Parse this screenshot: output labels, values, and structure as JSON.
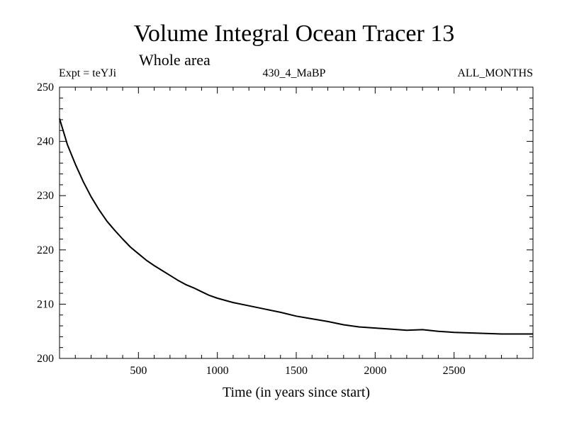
{
  "chart_data": {
    "type": "line",
    "title": "Volume Integral Ocean Tracer 13",
    "subtitle": "Whole area",
    "experiment": "Expt = teYJi",
    "run_label": "430_4_MaBP",
    "months_label": "ALL_MONTHS",
    "xlabel": "Time (in years since start)",
    "ylabel": "",
    "xlim": [
      0,
      3000
    ],
    "ylim": [
      200,
      250
    ],
    "xticks": [
      500,
      1000,
      1500,
      2000,
      2500
    ],
    "yticks": [
      200,
      210,
      220,
      230,
      240,
      250
    ],
    "grid": false,
    "series": [
      {
        "name": "Volume Integral Ocean Tracer 13",
        "color": "#000000",
        "x": [
          0,
          50,
          100,
          150,
          200,
          250,
          300,
          350,
          400,
          450,
          500,
          550,
          600,
          650,
          700,
          750,
          800,
          850,
          900,
          950,
          1000,
          1100,
          1200,
          1300,
          1400,
          1500,
          1600,
          1700,
          1800,
          1900,
          2000,
          2100,
          2200,
          2300,
          2400,
          2500,
          2600,
          2700,
          2800,
          2900,
          3000
        ],
        "y": [
          244.2,
          239.4,
          235.8,
          232.6,
          229.8,
          227.4,
          225.3,
          223.6,
          222.0,
          220.5,
          219.3,
          218.1,
          217.1,
          216.2,
          215.3,
          214.4,
          213.6,
          213.0,
          212.3,
          211.6,
          211.1,
          210.3,
          209.7,
          209.1,
          208.5,
          207.8,
          207.3,
          206.8,
          206.2,
          205.8,
          205.6,
          205.4,
          205.2,
          205.3,
          205.0,
          204.8,
          204.7,
          204.6,
          204.5,
          204.5,
          204.5
        ]
      }
    ]
  }
}
